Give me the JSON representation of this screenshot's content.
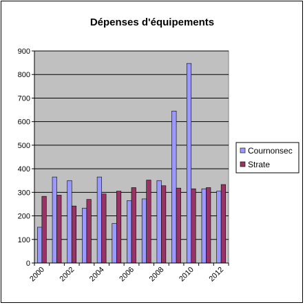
{
  "chart_data": {
    "type": "bar",
    "title": "Dépenses d'équipements",
    "xlabel": "",
    "ylabel": "",
    "ylim": [
      0,
      900
    ],
    "yticks": [
      0,
      100,
      200,
      300,
      400,
      500,
      600,
      700,
      800,
      900
    ],
    "categories": [
      "2000",
      "2001",
      "2002",
      "2003",
      "2004",
      "2005",
      "2006",
      "2007",
      "2008",
      "2009",
      "2010",
      "2011",
      "2012"
    ],
    "x_tick_labels": [
      "2000",
      "",
      "2002",
      "",
      "2004",
      "",
      "2006",
      "",
      "2008",
      "",
      "2010",
      "",
      "2012"
    ],
    "series": [
      {
        "name": "Cournonsec",
        "color": "#9999ff",
        "values": [
          152,
          365,
          350,
          233,
          365,
          168,
          265,
          272,
          350,
          645,
          847,
          315,
          305
        ]
      },
      {
        "name": "Strate",
        "color": "#993366",
        "values": [
          283,
          288,
          242,
          270,
          293,
          305,
          320,
          352,
          328,
          318,
          315,
          320,
          333
        ]
      }
    ],
    "grid": true,
    "plot_background": "#c0c0c0",
    "legend_position": "right"
  }
}
